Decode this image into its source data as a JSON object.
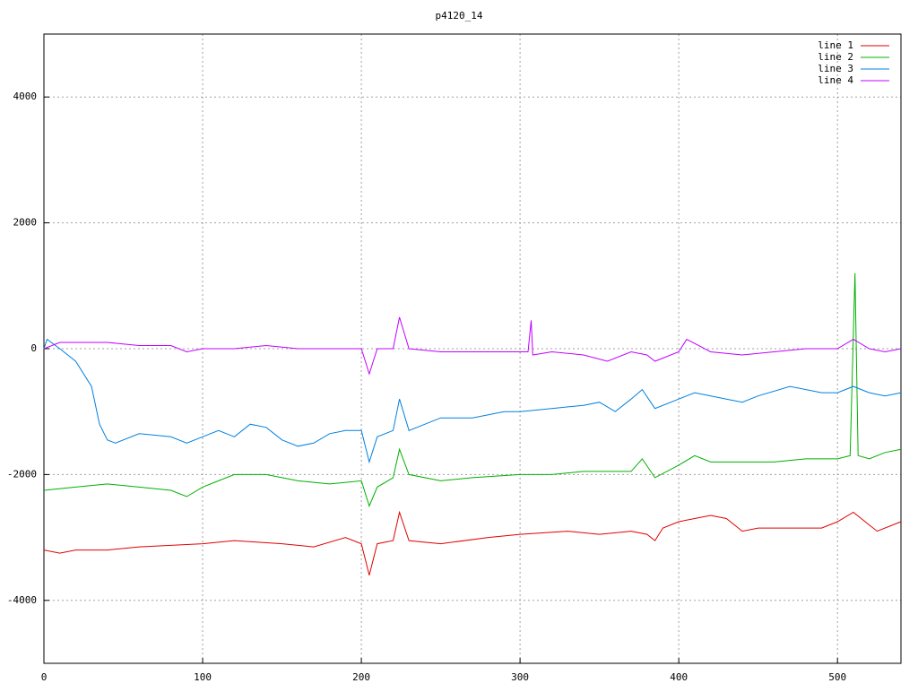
{
  "chart_data": {
    "type": "line",
    "title": "p4120_14",
    "xlim": [
      0,
      540
    ],
    "ylim": [
      -5000,
      5000
    ],
    "xticks": [
      0,
      100,
      200,
      300,
      400,
      500
    ],
    "yticks": [
      -4000,
      -2000,
      0,
      2000,
      4000
    ],
    "grid": true,
    "legend": "top-right",
    "series": [
      {
        "name": "line 1",
        "color": "#e00000",
        "x": [
          0,
          10,
          20,
          40,
          60,
          100,
          120,
          150,
          170,
          190,
          200,
          205,
          210,
          220,
          224,
          230,
          250,
          280,
          300,
          330,
          350,
          370,
          380,
          385,
          390,
          400,
          410,
          420,
          430,
          440,
          450,
          470,
          490,
          500,
          510,
          520,
          525,
          540
        ],
        "values": [
          -3200,
          -3250,
          -3200,
          -3200,
          -3150,
          -3100,
          -3050,
          -3100,
          -3150,
          -3000,
          -3100,
          -3600,
          -3100,
          -3050,
          -2600,
          -3050,
          -3100,
          -3000,
          -2950,
          -2900,
          -2950,
          -2900,
          -2950,
          -3050,
          -2850,
          -2750,
          -2700,
          -2650,
          -2700,
          -2900,
          -2850,
          -2850,
          -2850,
          -2750,
          -2600,
          -2800,
          -2900,
          -2750
        ]
      },
      {
        "name": "line 2",
        "color": "#00b000",
        "x": [
          0,
          20,
          40,
          60,
          80,
          90,
          100,
          110,
          120,
          140,
          160,
          180,
          200,
          205,
          210,
          220,
          224,
          230,
          250,
          270,
          300,
          320,
          340,
          370,
          377,
          385,
          400,
          410,
          420,
          440,
          460,
          480,
          500,
          508,
          511,
          513,
          520,
          530,
          540
        ],
        "values": [
          -2250,
          -2200,
          -2150,
          -2200,
          -2250,
          -2350,
          -2200,
          -2100,
          -2000,
          -2000,
          -2100,
          -2150,
          -2100,
          -2500,
          -2200,
          -2050,
          -1600,
          -2000,
          -2100,
          -2050,
          -2000,
          -2000,
          -1950,
          -1950,
          -1750,
          -2050,
          -1850,
          -1700,
          -1800,
          -1800,
          -1800,
          -1750,
          -1750,
          -1700,
          1200,
          -1700,
          -1750,
          -1650,
          -1600
        ]
      },
      {
        "name": "line 3",
        "color": "#0080e0",
        "x": [
          0,
          2,
          10,
          20,
          30,
          35,
          40,
          45,
          60,
          80,
          90,
          100,
          110,
          120,
          130,
          140,
          150,
          160,
          170,
          180,
          190,
          200,
          205,
          210,
          220,
          224,
          230,
          250,
          270,
          290,
          300,
          320,
          340,
          350,
          360,
          370,
          377,
          385,
          400,
          410,
          430,
          440,
          450,
          470,
          490,
          500,
          510,
          520,
          530,
          540
        ],
        "values": [
          0,
          150,
          0,
          -200,
          -600,
          -1200,
          -1450,
          -1500,
          -1350,
          -1400,
          -1500,
          -1400,
          -1300,
          -1400,
          -1200,
          -1250,
          -1450,
          -1550,
          -1500,
          -1350,
          -1300,
          -1300,
          -1800,
          -1400,
          -1300,
          -800,
          -1300,
          -1100,
          -1100,
          -1000,
          -1000,
          -950,
          -900,
          -850,
          -1000,
          -800,
          -650,
          -950,
          -800,
          -700,
          -800,
          -850,
          -750,
          -600,
          -700,
          -700,
          -600,
          -700,
          -750,
          -700
        ]
      },
      {
        "name": "line 4",
        "color": "#c000ff",
        "x": [
          0,
          10,
          20,
          40,
          60,
          80,
          90,
          100,
          120,
          140,
          160,
          180,
          200,
          205,
          210,
          220,
          224,
          230,
          250,
          270,
          290,
          305,
          307,
          308,
          320,
          340,
          355,
          370,
          380,
          385,
          400,
          405,
          420,
          440,
          460,
          480,
          500,
          510,
          520,
          530,
          540
        ],
        "values": [
          0,
          100,
          100,
          100,
          50,
          50,
          -50,
          0,
          0,
          50,
          0,
          0,
          0,
          -400,
          0,
          0,
          500,
          0,
          -50,
          -50,
          -50,
          -50,
          450,
          -100,
          -50,
          -100,
          -200,
          -50,
          -100,
          -200,
          -50,
          150,
          -50,
          -100,
          -50,
          0,
          0,
          150,
          0,
          -50,
          0
        ]
      }
    ]
  }
}
